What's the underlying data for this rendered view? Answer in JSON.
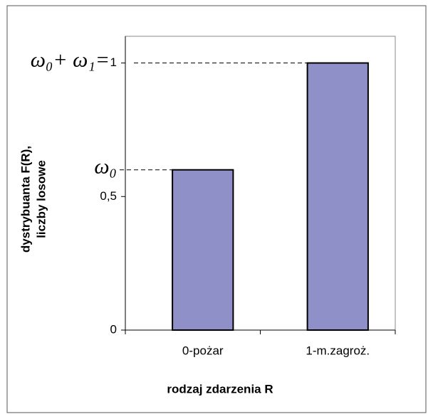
{
  "chart_data": {
    "type": "bar",
    "categories": [
      "0-pożar",
      "1-m.zagroż."
    ],
    "values": [
      0.6,
      1
    ],
    "value_annotations": [
      "ω₀",
      "ω₀+ ω₁="
    ],
    "color": "#9090c8",
    "ylim": [
      0,
      1.1
    ],
    "yticks": [
      0,
      {
        "value": 0.5,
        "label": "0,5"
      },
      1
    ],
    "y_label": [
      "dystrybuanta F(R),",
      "liczby losowe"
    ],
    "x_label": "rodzaj zdarzenia R"
  }
}
